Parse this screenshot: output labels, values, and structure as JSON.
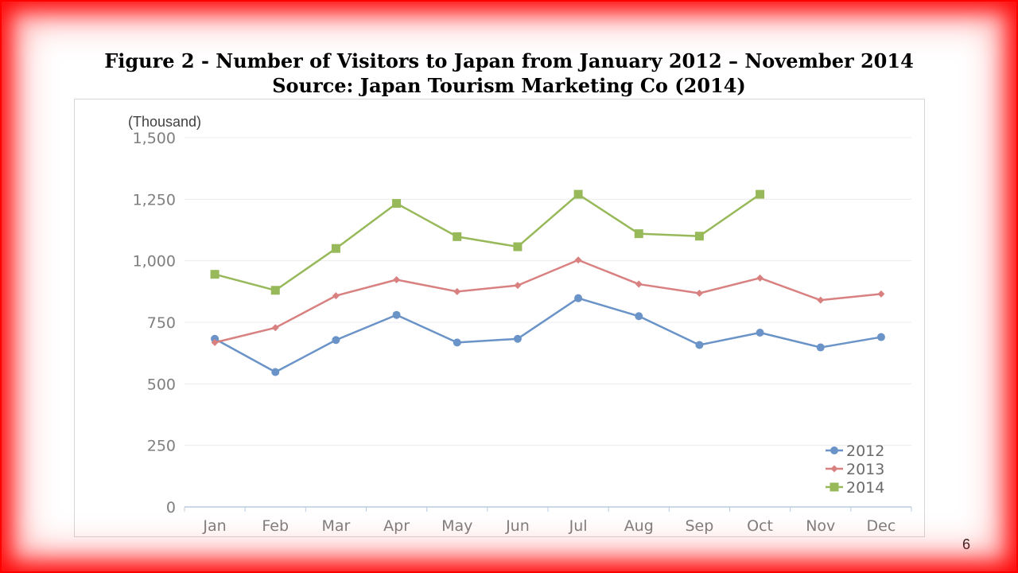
{
  "slide": {
    "title_line1": "Figure 2 - Number of Visitors to Japan from January 2012 – November 2014",
    "title_line2": "Source: Japan Tourism Marketing Co (2014)",
    "page_number": "6",
    "frame_color": "#ff0000"
  },
  "chart_data": {
    "type": "line",
    "title": "",
    "xlabel": "",
    "ylabel": "(Thousand)",
    "categories": [
      "Jan",
      "Feb",
      "Mar",
      "Apr",
      "May",
      "Jun",
      "Jul",
      "Aug",
      "Sep",
      "Oct",
      "Nov",
      "Dec"
    ],
    "ylim": [
      0,
      1500
    ],
    "yticks": [
      0,
      250,
      500,
      750,
      1000,
      1250,
      1500
    ],
    "ytick_labels": [
      "0",
      "250",
      "500",
      "750",
      "1,000",
      "1,250",
      "1,500"
    ],
    "grid": true,
    "legend_position": "bottom-right",
    "series": [
      {
        "name": "2012",
        "color": "#6a93c8",
        "marker": "circle",
        "values": [
          683,
          548,
          678,
          780,
          668,
          683,
          848,
          775,
          658,
          708,
          648,
          690
        ]
      },
      {
        "name": "2013",
        "color": "#d98080",
        "marker": "diamond",
        "values": [
          668,
          728,
          858,
          923,
          875,
          900,
          1003,
          905,
          868,
          930,
          840,
          865
        ]
      },
      {
        "name": "2014",
        "color": "#97b95a",
        "marker": "square",
        "values": [
          945,
          880,
          1050,
          1233,
          1098,
          1057,
          1270,
          1110,
          1100,
          1270,
          null,
          null
        ]
      }
    ]
  }
}
